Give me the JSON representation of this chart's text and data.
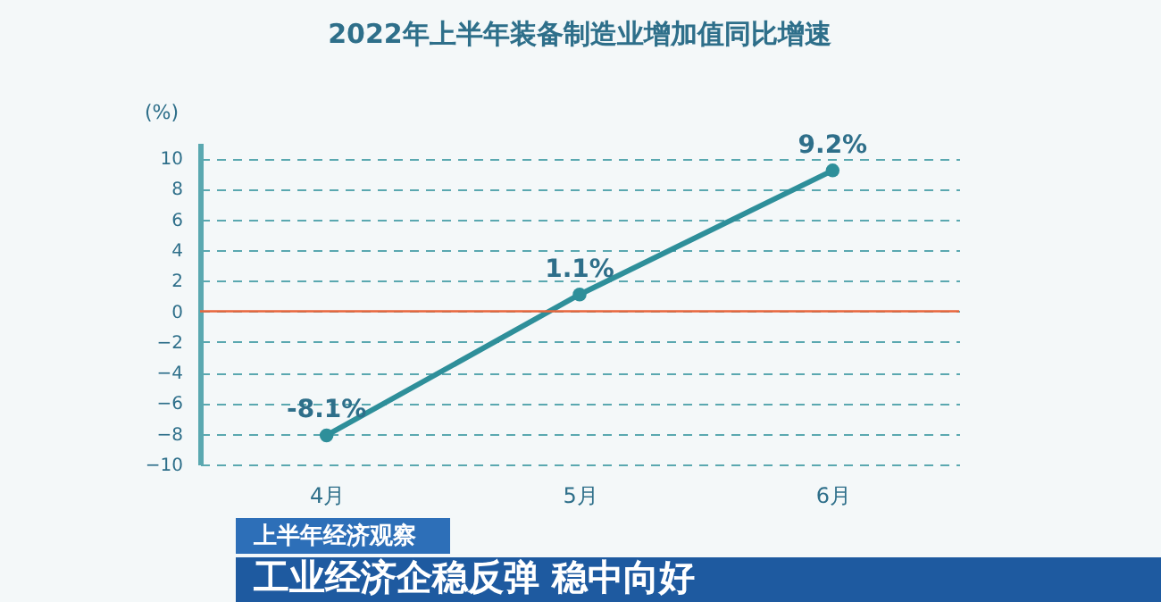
{
  "chart_data": {
    "type": "line",
    "title": "2022年上半年装备制造业增加值同比增速",
    "ylabel": "(%)",
    "categories": [
      "4月",
      "5月",
      "6月"
    ],
    "series": [
      {
        "color": "#2e8f9a",
        "values": [
          -8.1,
          1.1,
          9.2
        ],
        "value_labels": [
          "-8.1%",
          "1.1%",
          "9.2%"
        ]
      }
    ],
    "ylim": [
      -10,
      11
    ],
    "yticks": [
      -10,
      -8,
      -6,
      -4,
      -2,
      0,
      2,
      4,
      6,
      8,
      10
    ],
    "grid": "y",
    "marker": "circle",
    "line_style": "solid",
    "ref_lines": [
      {
        "axis": "y",
        "value": 0,
        "color": "#e8663c"
      }
    ],
    "annotations": [
      "上半年经济观察",
      "工业经济企稳反弹 稳中向好"
    ]
  }
}
